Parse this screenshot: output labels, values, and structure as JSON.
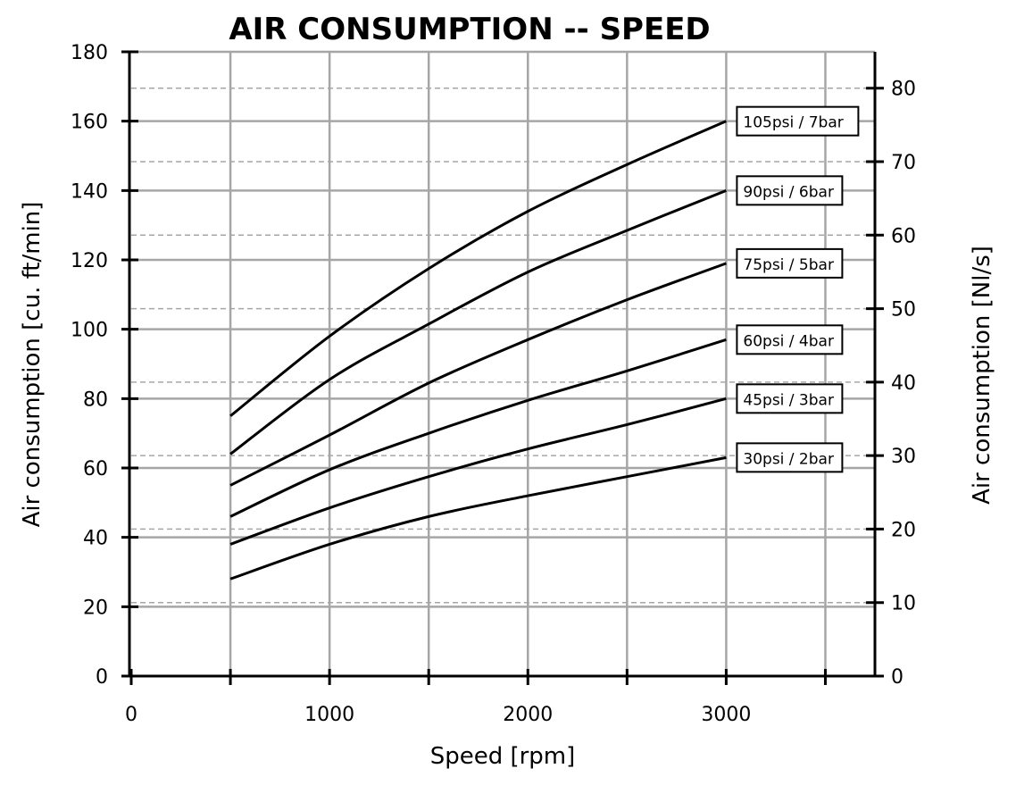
{
  "chart_data": {
    "type": "line",
    "title": "AIR CONSUMPTION -- SPEED",
    "xlabel": "Speed [rpm]",
    "ylabel": "Air consumption [cu. ft/min]",
    "y2label": "Air consumption  [Nl/s]",
    "xlim": [
      0,
      3750
    ],
    "ylim": [
      0,
      180
    ],
    "y2lim": [
      0,
      84.95
    ],
    "x_ticks": [
      0,
      1000,
      2000,
      3000
    ],
    "x_tick_labels": [
      "0",
      "1000",
      "2000",
      "3000"
    ],
    "y_ticks": [
      0,
      20,
      40,
      60,
      80,
      100,
      120,
      140,
      160,
      180
    ],
    "y_tick_labels": [
      "0",
      "20",
      "40",
      "60",
      "80",
      "100",
      "120",
      "140",
      "160",
      "180"
    ],
    "y2_ticks": [
      0,
      10,
      20,
      30,
      40,
      50,
      60,
      70,
      80
    ],
    "y2_tick_labels": [
      "0",
      "10",
      "20",
      "30",
      "40",
      "50",
      "60",
      "70",
      "80"
    ],
    "grid": true,
    "x": [
      500,
      1000,
      1500,
      2000,
      2500,
      3000
    ],
    "series": [
      {
        "name": "105psi / 7bar",
        "values": [
          75,
          98,
          117.5,
          134,
          147.5,
          160
        ]
      },
      {
        "name": "90psi / 6bar",
        "values": [
          64,
          85.5,
          101.5,
          116.5,
          128.5,
          140
        ]
      },
      {
        "name": "75psi / 5bar",
        "values": [
          55,
          69.5,
          84.5,
          97,
          108.5,
          119
        ]
      },
      {
        "name": "60psi / 4bar",
        "values": [
          46,
          59.5,
          70,
          79.5,
          88,
          97
        ]
      },
      {
        "name": "45psi / 3bar",
        "values": [
          38,
          48.5,
          57.5,
          65.5,
          72.5,
          80
        ]
      },
      {
        "name": "30psi / 2bar",
        "values": [
          28,
          38,
          46,
          52,
          57.5,
          63
        ]
      }
    ],
    "colors": {
      "line": "#000000",
      "grid": "#a6a6a6",
      "axis": "#000000"
    }
  }
}
